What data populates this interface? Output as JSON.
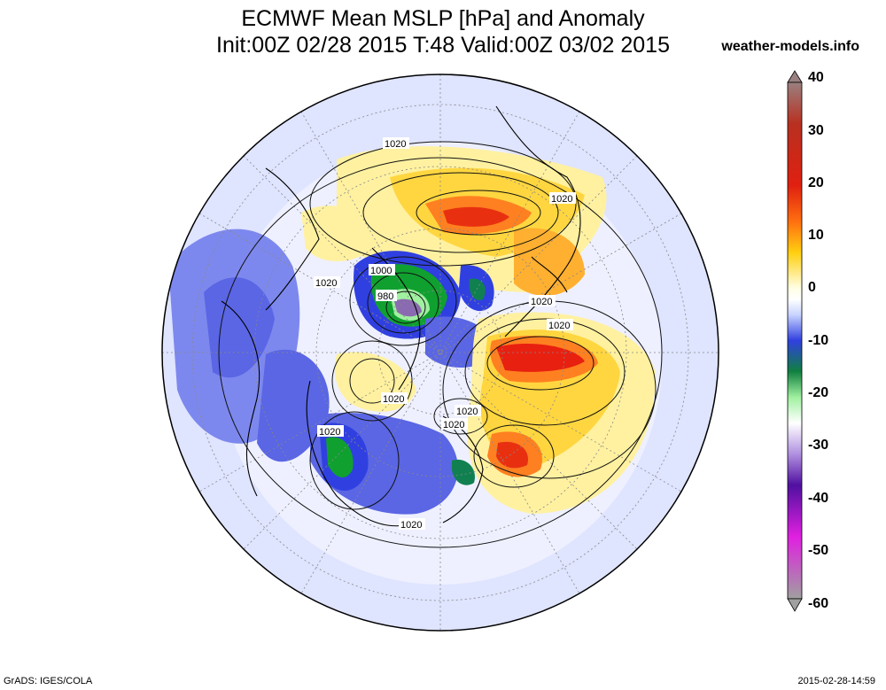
{
  "title": {
    "line1": "ECMWF Mean MSLP [hPa] and Anomaly",
    "line2": "Init:00Z 02/28 2015 T:48 Valid:00Z 03/02 2015"
  },
  "credit": "weather-models.info",
  "footer": {
    "left": "GrADS: IGES/COLA",
    "right": "2015-02-28-14:59"
  },
  "map": {
    "projection": "north-polar-stereographic",
    "contour_labels": [
      "1020",
      "1020",
      "1020",
      "1000",
      "980",
      "1020",
      "1020",
      "1020",
      "1020",
      "1020",
      "1020",
      "1020"
    ],
    "anomaly_centers": [
      {
        "name": "north-atlantic-high-anomaly",
        "value": "positive"
      },
      {
        "name": "pacific-high-anomaly",
        "value": "positive"
      },
      {
        "name": "eastern-pacific-high-anomaly",
        "value": "positive"
      },
      {
        "name": "greenland-low-anomaly",
        "value": "negative"
      },
      {
        "name": "siberian-low-anomaly",
        "value": "negative"
      },
      {
        "name": "arctic-low-anomaly",
        "value": "negative"
      }
    ]
  },
  "colorbar": {
    "ticks": [
      "40",
      "30",
      "20",
      "10",
      "0",
      "-10",
      "-20",
      "-30",
      "-40",
      "-50",
      "-60"
    ],
    "colors": [
      "#8a6a6a",
      "#b02010",
      "#e82010",
      "#ff8c10",
      "#ffe010",
      "#ffffe0",
      "#ffffff",
      "#c8d8ff",
      "#3040e0",
      "#10a030",
      "#a0f0a0",
      "#ffffff",
      "#c0a0e0",
      "#6010a0",
      "#e020e0",
      "#a0a0a0"
    ]
  }
}
